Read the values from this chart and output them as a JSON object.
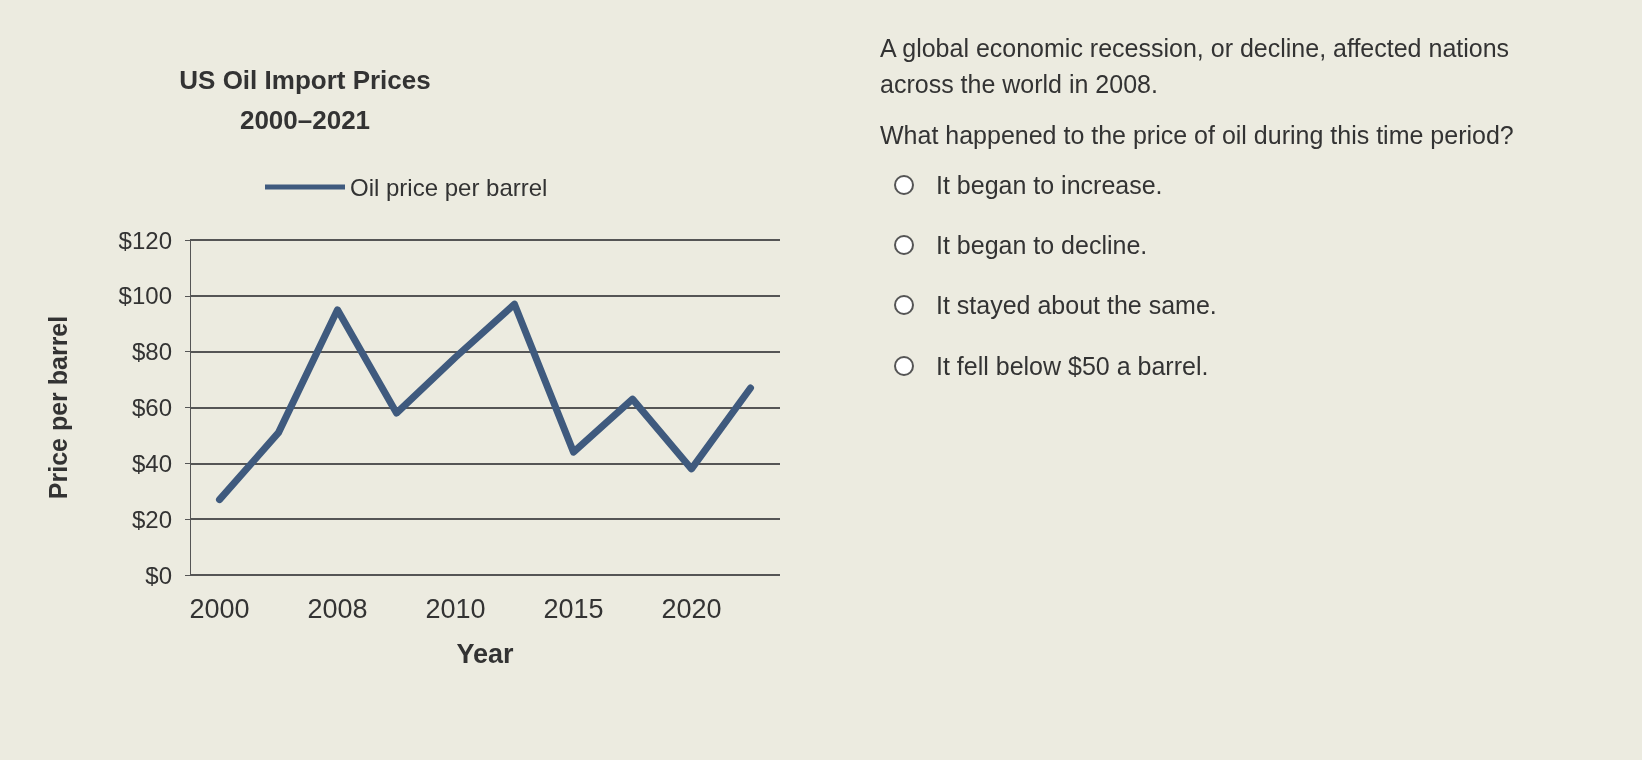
{
  "chart_data": {
    "type": "line",
    "title": "US Oil Import Prices\n2000–2021",
    "xlabel": "Year",
    "ylabel": "Price per barrel",
    "categories": [
      "2000",
      null,
      "2008",
      null,
      "2010",
      null,
      "2015",
      null,
      "2020",
      null
    ],
    "series": [
      {
        "name": "Oil price per barrel",
        "color": "#3f5a7e",
        "values": [
          27,
          51,
          95,
          58,
          78,
          97,
          44,
          63,
          38,
          67
        ]
      }
    ],
    "ylim": [
      0,
      120
    ],
    "yticks": [
      {
        "value": 0,
        "label": "$0"
      },
      {
        "value": 20,
        "label": "$20"
      },
      {
        "value": 40,
        "label": "$40"
      },
      {
        "value": 60,
        "label": "$60"
      },
      {
        "value": 80,
        "label": "$80"
      },
      {
        "value": 100,
        "label": "$100"
      },
      {
        "value": 120,
        "label": "$120"
      }
    ],
    "grid": "y",
    "legend": "top",
    "marker": "none",
    "line_style": "solid",
    "annotations": [
      "A global economic recession, or decline, affected nations across the world in 2008.",
      "What happened to the price of oil during this time period?",
      "It began to increase.",
      "It began to decline.",
      "It stayed about the same.",
      "It fell below $50 a barrel."
    ]
  }
}
